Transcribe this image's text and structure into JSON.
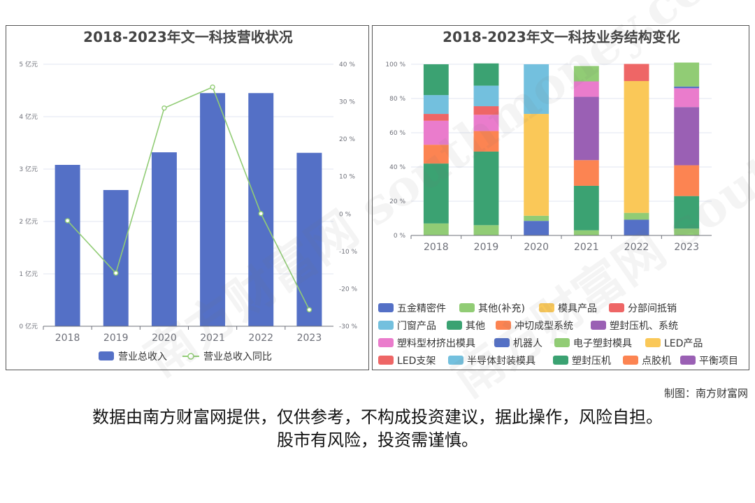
{
  "credit": "制图：南方财富网",
  "disclaimer": {
    "line1": "数据由南方财富网提供，仅供参考，不构成投资建议，据此操作，风险自担。",
    "line2": "股市有风险，投资需谨慎。"
  },
  "watermark": {
    "text": "南方财富网 southmoney.com"
  },
  "colors": {
    "bar": "#5470c6",
    "line": "#91cc75",
    "axis": "#6e7079",
    "grid": "#e0e6f1"
  },
  "chart_data": [
    {
      "type": "bar",
      "title": "2018-2023年文一科技营收状况",
      "categories": [
        "2018",
        "2019",
        "2020",
        "2021",
        "2022",
        "2023"
      ],
      "series": [
        {
          "name": "营业总收入",
          "type": "bar",
          "axis": "left",
          "values": [
            3.08,
            2.6,
            3.32,
            4.45,
            4.45,
            3.31
          ]
        },
        {
          "name": "营业总收入同比",
          "type": "line",
          "axis": "right",
          "values": [
            -1.8,
            -15.8,
            28.3,
            33.9,
            0.1,
            -25.6
          ]
        }
      ],
      "yaxis_left": {
        "min": 0,
        "max": 5,
        "ticks": [
          "0 亿元",
          "1 亿元",
          "2 亿元",
          "3 亿元",
          "4 亿元",
          "5 亿元"
        ]
      },
      "yaxis_right": {
        "min": -30,
        "max": 40,
        "ticks": [
          "-30 %",
          "-20 %",
          "-10 %",
          "0 %",
          "10 %",
          "20 %",
          "30 %",
          "40 %"
        ]
      },
      "legend": [
        "营业总收入",
        "营业总收入同比"
      ],
      "legend_position": "bottom",
      "grid": true
    },
    {
      "type": "bar",
      "stacked": true,
      "title": "2018-2023年文一科技业务结构变化",
      "categories": [
        "2018",
        "2019",
        "2020",
        "2021",
        "2022",
        "2023"
      ],
      "yaxis": {
        "min": 0,
        "max": 100,
        "ticks": [
          "0 %",
          "20 %",
          "40 %",
          "60 %",
          "80 %",
          "100 %"
        ]
      },
      "legend_position": "bottom",
      "grid": true,
      "series": [
        {
          "name": "五金精密件",
          "color": "#5470c6",
          "values": [
            0,
            0,
            8.5,
            0,
            9.2,
            0
          ]
        },
        {
          "name": "其他(补充)",
          "color": "#91cc75",
          "values": [
            7,
            6,
            3,
            3,
            4,
            4
          ]
        },
        {
          "name": "模具产品",
          "color": "#fac858",
          "values": [
            0,
            0,
            58.5,
            0,
            0,
            0
          ]
        },
        {
          "name": "分部间抵销",
          "color": "#ee6666",
          "values": [
            0,
            0,
            0,
            0,
            0,
            0
          ]
        },
        {
          "name": "门窗产品",
          "color": "#73c0de",
          "values": [
            0,
            0,
            0,
            0,
            0,
            0
          ]
        },
        {
          "name": "其他",
          "color": "#3ba272",
          "values": [
            35,
            43,
            0,
            26,
            0,
            19
          ]
        },
        {
          "name": "冲切成型系统",
          "color": "#fc8452",
          "values": [
            11,
            12,
            0,
            15,
            0,
            18
          ]
        },
        {
          "name": "塑封压机、系统",
          "color": "#9a60b4",
          "values": [
            0,
            0,
            0,
            37,
            0,
            34
          ]
        },
        {
          "name": "塑料型材挤出模具",
          "color": "#ea7ccc",
          "values": [
            14,
            9.5,
            0,
            9,
            0,
            11
          ]
        },
        {
          "name": "机器人",
          "color": "#5470c6",
          "values": [
            0,
            0,
            0,
            0,
            0,
            1
          ]
        },
        {
          "name": "电子塑封模具",
          "color": "#91cc75",
          "values": [
            0,
            0,
            0,
            9,
            0,
            14
          ]
        },
        {
          "name": "LED产品",
          "color": "#fac858",
          "values": [
            0,
            0,
            1,
            0,
            77,
            0
          ]
        },
        {
          "name": "LED支架",
          "color": "#ee6666",
          "values": [
            4,
            5,
            0,
            0,
            10,
            0
          ]
        },
        {
          "name": "半导体封装模具",
          "color": "#73c0de",
          "values": [
            11,
            12,
            29,
            0,
            0,
            0
          ]
        },
        {
          "name": "塑封压机",
          "color": "#3ba272",
          "values": [
            18,
            13,
            0,
            0,
            0,
            0
          ]
        },
        {
          "name": "点胶机",
          "color": "#fc8452",
          "values": [
            0,
            0,
            0,
            0,
            0,
            0
          ]
        },
        {
          "name": "平衡项目",
          "color": "#9a60b4",
          "values": [
            0,
            0,
            0,
            0,
            0,
            0
          ]
        }
      ]
    }
  ]
}
